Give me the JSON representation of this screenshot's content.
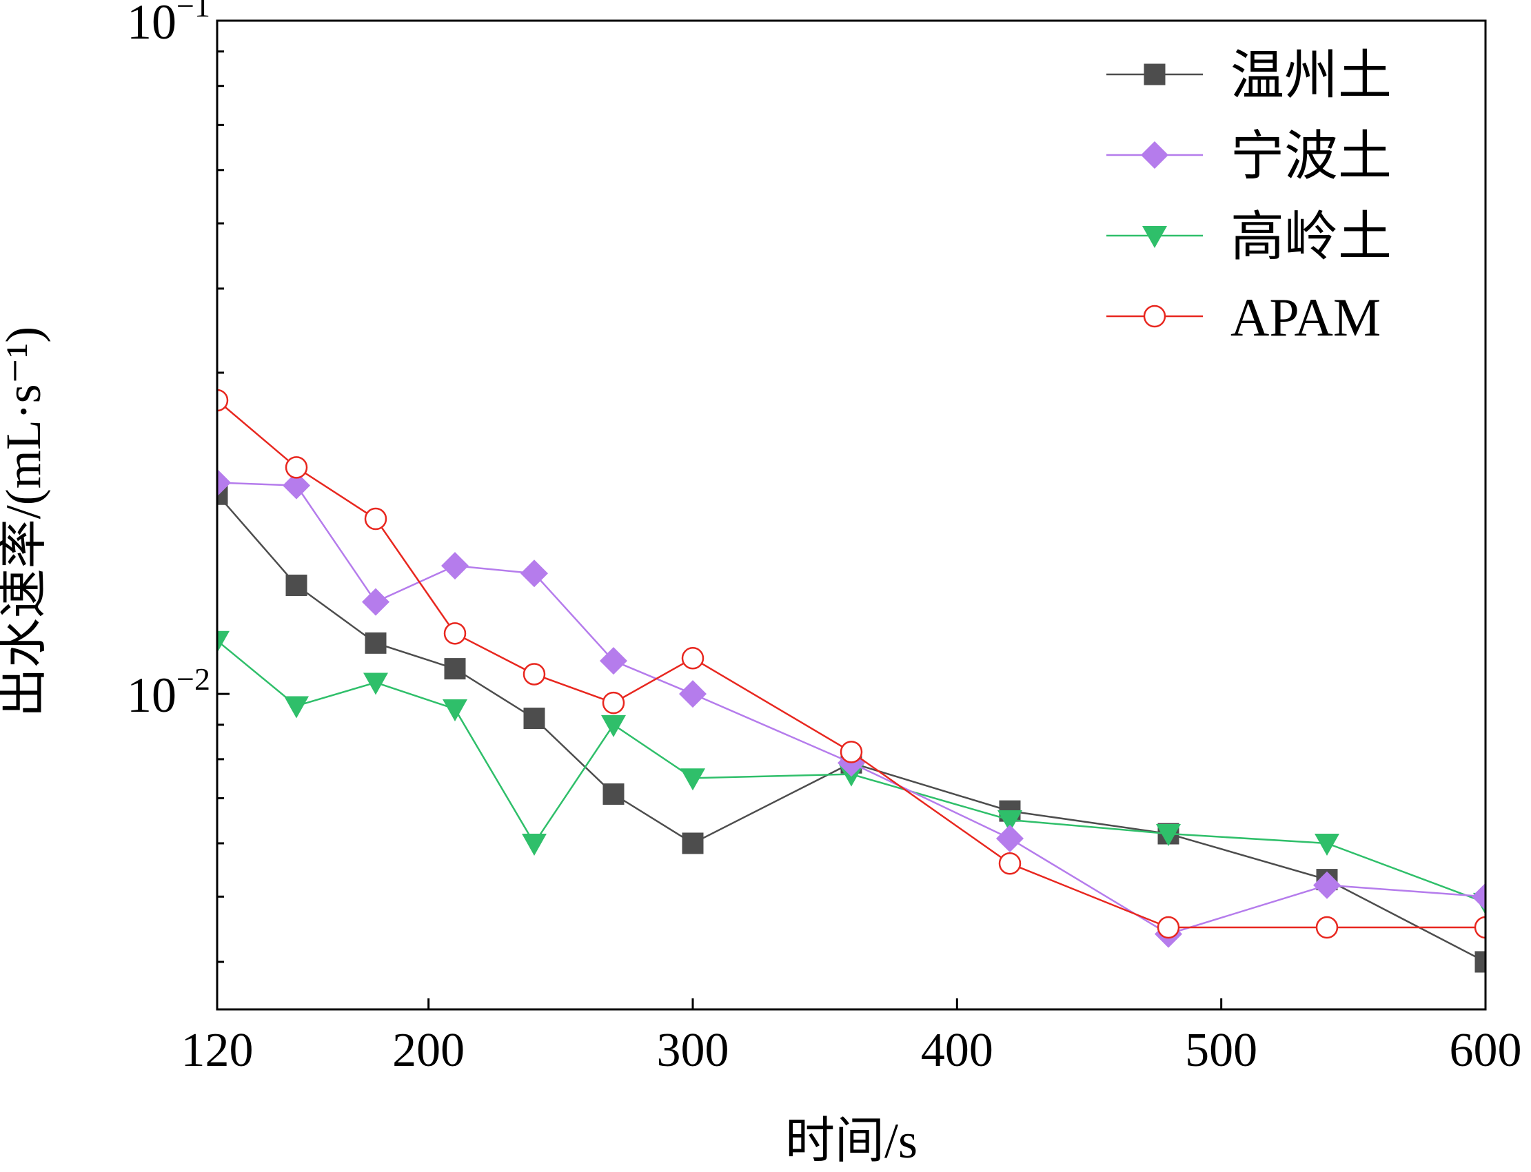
{
  "chart_data": {
    "type": "line",
    "title": "",
    "xlabel": "时间/s",
    "ylabel": "出水速率/(mL·s⁻¹)",
    "yscale": "log",
    "xlim": [
      120,
      600
    ],
    "ylim": [
      0.0034,
      0.1
    ],
    "x_ticks": [
      120,
      200,
      300,
      400,
      500,
      600
    ],
    "x_tick_labels": [
      "120",
      "200",
      "300",
      "400",
      "500",
      "600"
    ],
    "y_ticks": [
      {
        "value": 0.1,
        "base": "10",
        "exp": "−1"
      },
      {
        "value": 0.01,
        "base": "10",
        "exp": "−2"
      }
    ],
    "legend_position": "top-right",
    "series": [
      {
        "name": "温州土",
        "color": "#4d4d4d",
        "marker": "square",
        "x": [
          120,
          150,
          180,
          210,
          240,
          270,
          300,
          360,
          420,
          480,
          540,
          600
        ],
        "y": [
          0.0198,
          0.0145,
          0.0119,
          0.0109,
          0.0092,
          0.0071,
          0.006,
          0.0079,
          0.0067,
          0.0062,
          0.0053,
          0.004
        ]
      },
      {
        "name": "宁波土",
        "color": "#b57cec",
        "marker": "diamond",
        "x": [
          120,
          150,
          180,
          210,
          240,
          270,
          300,
          360,
          420,
          480,
          540,
          600
        ],
        "y": [
          0.0206,
          0.0204,
          0.0137,
          0.0155,
          0.0151,
          0.0112,
          0.01,
          0.0079,
          0.0061,
          0.0044,
          0.0052,
          0.005
        ]
      },
      {
        "name": "高岭土",
        "color": "#2fbf6a",
        "marker": "triangle-down",
        "x": [
          120,
          150,
          180,
          210,
          240,
          270,
          300,
          360,
          420,
          480,
          540,
          600
        ],
        "y": [
          0.012,
          0.0096,
          0.0104,
          0.0095,
          0.006,
          0.009,
          0.0075,
          0.0076,
          0.0065,
          0.0062,
          0.006,
          0.0049
        ]
      },
      {
        "name": "APAM",
        "color": "#e8271f",
        "marker": "open-circle",
        "x": [
          120,
          150,
          180,
          210,
          240,
          270,
          300,
          360,
          420,
          480,
          540,
          600
        ],
        "y": [
          0.0273,
          0.0217,
          0.0182,
          0.0123,
          0.0107,
          0.0097,
          0.0113,
          0.0082,
          0.0056,
          0.0045,
          0.0045,
          0.0045
        ]
      }
    ]
  }
}
